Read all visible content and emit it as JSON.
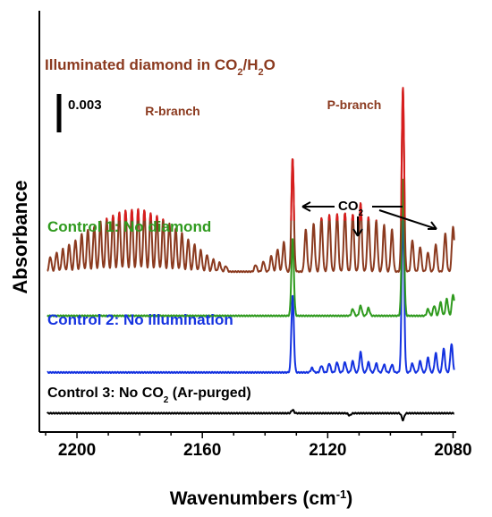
{
  "chart_data": {
    "type": "line",
    "title": "",
    "xlabel": "Wavenumbers (cm",
    "xlabel_sup": "-1",
    "xlabel_end": ")",
    "ylabel": "Absorbance",
    "xlim": [
      2212,
      2079
    ],
    "x_reversed": true,
    "x_ticks": [
      2200,
      2160,
      2120,
      2080
    ],
    "x_tick_labels": [
      "2200",
      "2160",
      "2120",
      "2080"
    ],
    "scale_bar": {
      "label": "0.003",
      "value": 0.003
    },
    "branch_labels": [
      "R-branch",
      "P-branch"
    ],
    "co2_annotation": {
      "text": "CO",
      "sub": "2"
    },
    "series": [
      {
        "name": "Illuminated diamond in CO2/H2O",
        "label_parts": [
          "Illuminated diamond in CO",
          "2",
          "/H",
          "2",
          "O"
        ],
        "color": "#8b3a1f",
        "overlay_color": "#d81e1e",
        "baseline": 0.0125,
        "peaks": [
          {
            "x": 2208.5,
            "h": 0.0013
          },
          {
            "x": 2206.5,
            "h": 0.0017
          },
          {
            "x": 2204.5,
            "h": 0.002
          },
          {
            "x": 2202.5,
            "h": 0.0024
          },
          {
            "x": 2200.5,
            "h": 0.0028
          },
          {
            "x": 2198.5,
            "h": 0.0033
          },
          {
            "x": 2196.5,
            "h": 0.0037
          },
          {
            "x": 2194.5,
            "h": 0.004
          },
          {
            "x": 2192.5,
            "h": 0.0044
          },
          {
            "x": 2190.5,
            "h": 0.0047
          },
          {
            "x": 2188.5,
            "h": 0.005
          },
          {
            "x": 2186.5,
            "h": 0.0052
          },
          {
            "x": 2184.5,
            "h": 0.0054
          },
          {
            "x": 2182.5,
            "h": 0.0055
          },
          {
            "x": 2180.5,
            "h": 0.0055
          },
          {
            "x": 2178.5,
            "h": 0.0054
          },
          {
            "x": 2176.5,
            "h": 0.0052
          },
          {
            "x": 2174.5,
            "h": 0.0049
          },
          {
            "x": 2172.5,
            "h": 0.0046
          },
          {
            "x": 2170.5,
            "h": 0.0043
          },
          {
            "x": 2168.5,
            "h": 0.0038
          },
          {
            "x": 2166.5,
            "h": 0.0034
          },
          {
            "x": 2164.5,
            "h": 0.0029
          },
          {
            "x": 2162.5,
            "h": 0.0024
          },
          {
            "x": 2160.5,
            "h": 0.0019
          },
          {
            "x": 2158.5,
            "h": 0.0015
          },
          {
            "x": 2156.5,
            "h": 0.0011
          },
          {
            "x": 2154.5,
            "h": 0.0008
          },
          {
            "x": 2152.5,
            "h": 0.0005
          },
          {
            "x": 2143.0,
            "h": 0.0006
          },
          {
            "x": 2140.5,
            "h": 0.0009
          },
          {
            "x": 2138.0,
            "h": 0.0014
          },
          {
            "x": 2136.0,
            "h": 0.002
          },
          {
            "x": 2134.0,
            "h": 0.0026
          },
          {
            "x": 2131.2,
            "h": 0.01
          },
          {
            "x": 2127.0,
            "h": 0.0037
          },
          {
            "x": 2124.5,
            "h": 0.0042
          },
          {
            "x": 2122.0,
            "h": 0.0047
          },
          {
            "x": 2119.5,
            "h": 0.005
          },
          {
            "x": 2117.0,
            "h": 0.0051
          },
          {
            "x": 2114.5,
            "h": 0.0052
          },
          {
            "x": 2112.0,
            "h": 0.0051
          },
          {
            "x": 2109.5,
            "h": 0.0061
          },
          {
            "x": 2107.0,
            "h": 0.0048
          },
          {
            "x": 2104.5,
            "h": 0.0045
          },
          {
            "x": 2102.0,
            "h": 0.0041
          },
          {
            "x": 2099.5,
            "h": 0.0037
          },
          {
            "x": 2096.0,
            "h": 0.0162
          },
          {
            "x": 2093.0,
            "h": 0.0028
          },
          {
            "x": 2090.5,
            "h": 0.0022
          },
          {
            "x": 2088.0,
            "h": 0.0017
          },
          {
            "x": 2085.5,
            "h": 0.0024
          },
          {
            "x": 2082.5,
            "h": 0.0034
          },
          {
            "x": 2080.0,
            "h": 0.004
          }
        ]
      },
      {
        "name": "Control 1: No diamond",
        "color": "#2f9a1e",
        "baseline": 0.0086,
        "peaks": [
          {
            "x": 2131.2,
            "h": 0.0068
          },
          {
            "x": 2096.0,
            "h": 0.012
          },
          {
            "x": 2112.0,
            "h": 0.0006
          },
          {
            "x": 2109.5,
            "h": 0.0009
          },
          {
            "x": 2107.0,
            "h": 0.0007
          },
          {
            "x": 2088.0,
            "h": 0.0006
          },
          {
            "x": 2086.0,
            "h": 0.0009
          },
          {
            "x": 2084.0,
            "h": 0.0012
          },
          {
            "x": 2082.0,
            "h": 0.0015
          },
          {
            "x": 2080.0,
            "h": 0.0019
          }
        ]
      },
      {
        "name": "Control 2: No illumination",
        "color": "#1432e0",
        "baseline": 0.0036,
        "peaks": [
          {
            "x": 2131.2,
            "h": 0.0068
          },
          {
            "x": 2096.0,
            "h": 0.0145
          },
          {
            "x": 2125.0,
            "h": 0.0004
          },
          {
            "x": 2122.0,
            "h": 0.0006
          },
          {
            "x": 2119.5,
            "h": 0.0008
          },
          {
            "x": 2117.0,
            "h": 0.0009
          },
          {
            "x": 2114.5,
            "h": 0.0009
          },
          {
            "x": 2112.0,
            "h": 0.001
          },
          {
            "x": 2109.5,
            "h": 0.0018
          },
          {
            "x": 2107.0,
            "h": 0.0009
          },
          {
            "x": 2104.5,
            "h": 0.0008
          },
          {
            "x": 2102.0,
            "h": 0.0007
          },
          {
            "x": 2099.5,
            "h": 0.0007
          },
          {
            "x": 2093.0,
            "h": 0.0008
          },
          {
            "x": 2090.5,
            "h": 0.001
          },
          {
            "x": 2088.0,
            "h": 0.0013
          },
          {
            "x": 2085.5,
            "h": 0.0017
          },
          {
            "x": 2083.0,
            "h": 0.0021
          },
          {
            "x": 2080.5,
            "h": 0.0025
          }
        ]
      },
      {
        "name": "Control 3: No CO",
        "label_parts": [
          "Control 3: No CO",
          "2",
          " (Ar-purged)"
        ],
        "color": "#000000",
        "baseline": 0.0,
        "peaks": [
          {
            "x": 2131.2,
            "h": 0.0003
          },
          {
            "x": 2096.0,
            "h": -0.0006
          },
          {
            "x": 2113.0,
            "h": -0.0002
          }
        ]
      }
    ],
    "grid": false,
    "legend": "inline labels"
  }
}
